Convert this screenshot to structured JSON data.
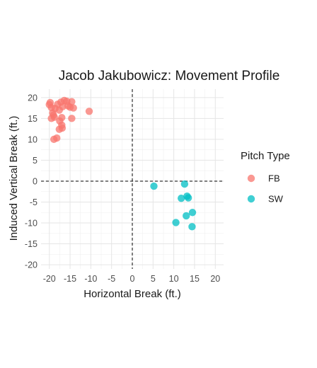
{
  "chart_data": {
    "type": "scatter",
    "title": "Jacob Jakubowicz: Movement Profile",
    "xlabel": "Horizontal Break (ft.)",
    "ylabel": "Induced Vertical Break (ft.)",
    "xlim": [
      -22,
      22
    ],
    "ylim": [
      -21,
      22
    ],
    "xticks": [
      -20,
      -15,
      -10,
      -5,
      0,
      5,
      10,
      15,
      20
    ],
    "yticks": [
      -20,
      -15,
      -10,
      -5,
      0,
      5,
      10,
      15,
      20
    ],
    "grid": true,
    "reference_lines": {
      "x": 0,
      "y": 0,
      "style": "dashed"
    },
    "legend": {
      "title": "Pitch Type",
      "position": "right"
    },
    "series": [
      {
        "name": "FB",
        "color": "#F8766D",
        "points": [
          [
            -19.8,
            18.8
          ],
          [
            -19.5,
            17.6
          ],
          [
            -20.0,
            18.3
          ],
          [
            -19.2,
            16.3
          ],
          [
            -19.5,
            15.0
          ],
          [
            -19.0,
            15.8
          ],
          [
            -18.6,
            17.4
          ],
          [
            -18.0,
            18.4
          ],
          [
            -17.6,
            17.0
          ],
          [
            -17.2,
            18.9
          ],
          [
            -16.8,
            17.8
          ],
          [
            -16.4,
            19.3
          ],
          [
            -15.8,
            19.1
          ],
          [
            -15.5,
            18.0
          ],
          [
            -15.0,
            17.7
          ],
          [
            -14.6,
            19.0
          ],
          [
            -14.2,
            17.5
          ],
          [
            -18.8,
            15.3
          ],
          [
            -17.5,
            14.4
          ],
          [
            -17.0,
            13.4
          ],
          [
            -17.6,
            12.4
          ],
          [
            -16.9,
            12.7
          ],
          [
            -18.9,
            10.0
          ],
          [
            -18.2,
            10.3
          ],
          [
            -14.6,
            15.0
          ],
          [
            -10.4,
            16.7
          ],
          [
            -17.0,
            15.2
          ]
        ]
      },
      {
        "name": "SW",
        "color": "#00BFC4",
        "points": [
          [
            5.2,
            -1.2
          ],
          [
            12.6,
            -0.7
          ],
          [
            11.8,
            -4.1
          ],
          [
            13.5,
            -4.0
          ],
          [
            13.2,
            -3.6
          ],
          [
            13.0,
            -8.3
          ],
          [
            14.5,
            -7.5
          ],
          [
            10.5,
            -9.9
          ],
          [
            14.4,
            -10.9
          ]
        ]
      }
    ]
  }
}
